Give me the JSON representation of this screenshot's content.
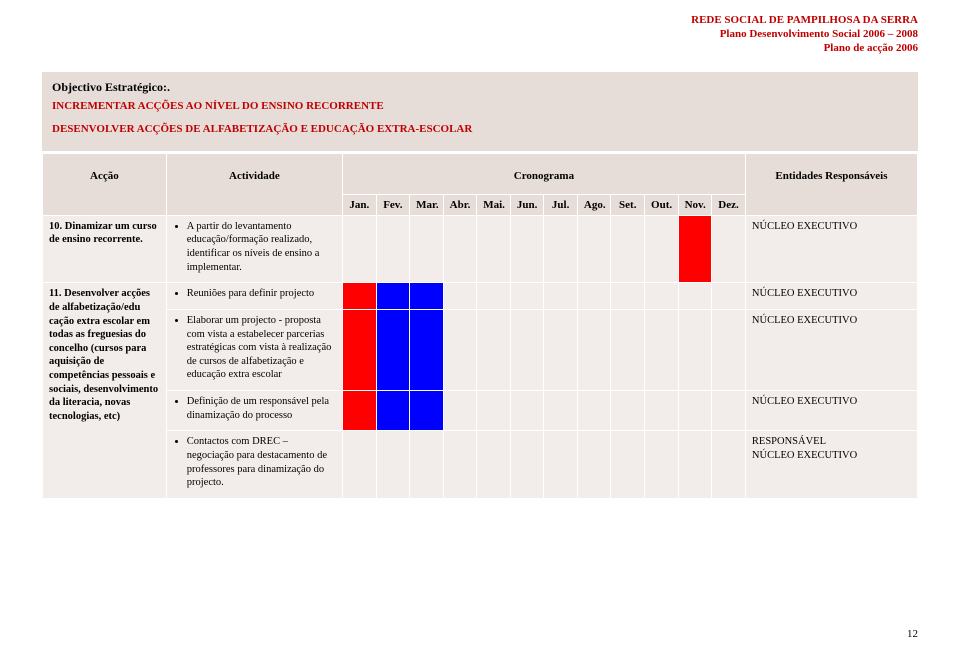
{
  "header": {
    "line1": "REDE SOCIAL DE PAMPILHOSA DA SERRA",
    "line2": "Plano Desenvolvimento Social 2006 – 2008",
    "line3": "Plano de acção 2006",
    "color": "#c00000"
  },
  "objective": {
    "label": "Objectivo Estratégico:.",
    "line1": "INCREMENTAR ACÇÕES AO NÍVEL DO ENSINO RECORRENTE",
    "line2": "DESENVOLVER ACÇÕES DE ALFABETIZAÇÃO E EDUCAÇÃO EXTRA-ESCOLAR"
  },
  "columns": {
    "accao": "Acção",
    "actividade": "Actividade",
    "cronograma": "Cronograma",
    "entidades": "Entidades Responsáveis",
    "months": [
      "Jan.",
      "Fev.",
      "Mar.",
      "Abr.",
      "Mai.",
      "Jun.",
      "Jul.",
      "Ago.",
      "Set.",
      "Out.",
      "Nov.",
      "Dez."
    ]
  },
  "rows": {
    "accao10": "10. Dinamizar um curso de ensino recorrente.",
    "accao11": "11. Desenvolver acções de alfabetização/edu cação extra escolar em todas as freguesias do concelho (cursos para aquisição de competências pessoais e sociais, desenvolvimento da literacia, novas tecnologias, etc)",
    "act1": "A partir do levantamento educação/formação realizado, identificar os níveis de ensino a implementar.",
    "act2": "Reuniões para definir projecto",
    "act3": "Elaborar um projecto - proposta com vista a estabelecer parcerias estratégicas com vista à realização de cursos de alfabetização e educação extra escolar",
    "act4": "Definição de um responsável pela dinamização do processo",
    "act5": "Contactos com DREC – negociação para destacamento de professores para dinamização do projecto.",
    "ent_nucleo": "NÚCLEO EXECUTIVO",
    "ent_resp_then_nucleo_1": "RESPONSÁVEL",
    "ent_resp_then_nucleo_2": "NÚCLEO EXECUTIVO"
  },
  "schedule": {
    "r1": [
      "",
      "",
      "",
      "",
      "",
      "",
      "",
      "",
      "",
      "",
      "red",
      ""
    ],
    "r2": [
      "red",
      "blue",
      "blue",
      "",
      "",
      "",
      "",
      "",
      "",
      "",
      "",
      ""
    ],
    "r3": [
      "red",
      "blue",
      "blue",
      "",
      "",
      "",
      "",
      "",
      "",
      "",
      "",
      ""
    ],
    "r4": [
      "red",
      "blue",
      "blue",
      "",
      "",
      "",
      "",
      "",
      "",
      "",
      "",
      ""
    ],
    "r5": [
      "",
      "",
      "",
      "",
      "",
      "",
      "",
      "",
      "",
      "",
      "",
      ""
    ]
  },
  "colors": {
    "header_bg": "#e6ddd8",
    "body_bg": "#f2edea",
    "blue": "#0000ff",
    "red": "#ff0000",
    "accent_text": "#c00000"
  },
  "col_widths": {
    "accao": "118",
    "actividade": "168",
    "month": "32",
    "entidades": "164"
  },
  "page_number": "12"
}
